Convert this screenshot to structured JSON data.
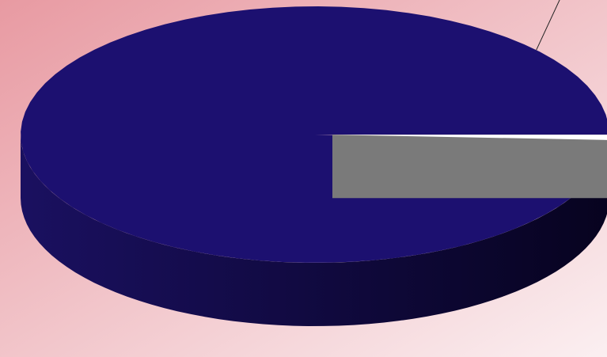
{
  "chart_data": {
    "type": "pie",
    "style": "3d-exploded",
    "start_angle_deg": 0,
    "direction": "counterclockwise",
    "series": [
      {
        "values": [
          99.3,
          0.7
        ],
        "colors": [
          "#1c1070",
          "#ffffff"
        ],
        "side_colors": [
          "#0f0840",
          "#7a7a7a"
        ],
        "exploded": [
          false,
          true
        ]
      }
    ],
    "has_leader_line": true,
    "legend": "none",
    "background": {
      "from": "#e89aa2",
      "to": "#fbeff1"
    }
  }
}
